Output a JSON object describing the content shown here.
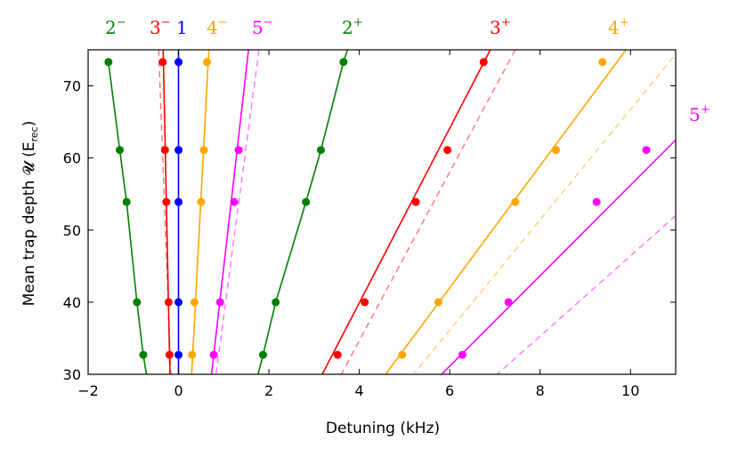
{
  "chart_data": {
    "type": "scatter",
    "title": "",
    "xlabel": "Detuning (kHz)",
    "ylabel": "Mean trap depth 𝓤 (E",
    "ylabel_sub": "rec",
    "ylabel_end": ")",
    "xlim": [
      -2,
      11
    ],
    "ylim": [
      30,
      75
    ],
    "xticks": [
      -2,
      0,
      2,
      4,
      6,
      8,
      10
    ],
    "yticks": [
      30,
      40,
      50,
      60,
      70
    ],
    "grid": false,
    "series": [
      {
        "name": "2⁻",
        "label": "2",
        "sup": "−",
        "color": "#008000",
        "points": [
          [
            -1.55,
            73.3
          ],
          [
            -1.3,
            61.1
          ],
          [
            -1.15,
            53.9
          ],
          [
            -0.92,
            40.0
          ],
          [
            -0.78,
            32.7
          ]
        ],
        "solid": [
          [
            -1.55,
            73.3
          ],
          [
            -1.3,
            61.1
          ],
          [
            -1.15,
            53.9
          ],
          [
            -0.92,
            40.0
          ],
          [
            -0.78,
            32.7
          ],
          [
            -0.71,
            30.0
          ]
        ],
        "dashed": null
      },
      {
        "name": "3⁻",
        "label": "3",
        "sup": "−",
        "color": "#ff0000",
        "points": [
          [
            -0.35,
            73.3
          ],
          [
            -0.3,
            61.1
          ],
          [
            -0.27,
            53.9
          ],
          [
            -0.22,
            40.0
          ],
          [
            -0.2,
            32.7
          ]
        ],
        "solid": [
          [
            -0.34,
            75.0
          ],
          [
            -0.19,
            30.0
          ]
        ],
        "dashed": [
          [
            -0.44,
            75.0
          ],
          [
            -0.17,
            30.0
          ]
        ]
      },
      {
        "name": "1",
        "label": "1",
        "sup": "",
        "color": "#0000ff",
        "points": [
          [
            0.0,
            73.3
          ],
          [
            0.0,
            61.1
          ],
          [
            0.0,
            53.9
          ],
          [
            0.0,
            40.0
          ],
          [
            0.0,
            32.7
          ]
        ],
        "solid": [
          [
            0.0,
            75.0
          ],
          [
            0.0,
            30.0
          ]
        ],
        "dashed": null
      },
      {
        "name": "4⁻",
        "label": "4",
        "sup": "−",
        "color": "#ffa500",
        "points": [
          [
            0.63,
            73.3
          ],
          [
            0.56,
            61.1
          ],
          [
            0.5,
            53.9
          ],
          [
            0.35,
            40.0
          ],
          [
            0.3,
            32.7
          ]
        ],
        "solid": [
          [
            0.67,
            75.0
          ],
          [
            0.29,
            30.0
          ]
        ],
        "dashed": null
      },
      {
        "name": "5⁻",
        "label": "5",
        "sup": "−",
        "color": "#ff00ff",
        "points": [
          [
            1.33,
            61.1
          ],
          [
            1.23,
            53.9
          ],
          [
            0.92,
            40.0
          ],
          [
            0.78,
            32.7
          ]
        ],
        "solid": [
          [
            1.55,
            75.0
          ],
          [
            0.73,
            30.0
          ]
        ],
        "dashed": [
          [
            1.78,
            75.0
          ],
          [
            0.83,
            30.0
          ]
        ]
      },
      {
        "name": "2⁺",
        "label": "2",
        "sup": "+",
        "color": "#008000",
        "points": [
          [
            3.65,
            73.3
          ],
          [
            3.15,
            61.1
          ],
          [
            2.82,
            53.9
          ],
          [
            2.15,
            40.0
          ],
          [
            1.87,
            32.7
          ]
        ],
        "solid": [
          [
            3.74,
            75.0
          ],
          [
            3.65,
            73.3
          ],
          [
            3.15,
            61.1
          ],
          [
            2.82,
            53.9
          ],
          [
            2.15,
            40.0
          ],
          [
            1.87,
            32.7
          ],
          [
            1.76,
            30.0
          ]
        ],
        "dashed": null
      },
      {
        "name": "3⁺",
        "label": "3",
        "sup": "+",
        "color": "#ff0000",
        "points": [
          [
            6.75,
            73.3
          ],
          [
            5.95,
            61.1
          ],
          [
            5.25,
            53.9
          ],
          [
            4.12,
            40.0
          ],
          [
            3.52,
            32.7
          ]
        ],
        "solid": [
          [
            6.9,
            75.0
          ],
          [
            3.18,
            30.0
          ]
        ],
        "dashed": [
          [
            7.45,
            75.0
          ],
          [
            3.6,
            30.0
          ]
        ]
      },
      {
        "name": "4⁺",
        "label": "4",
        "sup": "+",
        "color": "#ffa500",
        "points": [
          [
            9.38,
            73.3
          ],
          [
            8.35,
            61.1
          ],
          [
            7.45,
            53.9
          ],
          [
            5.75,
            40.0
          ],
          [
            4.95,
            32.7
          ]
        ],
        "solid": [
          [
            9.9,
            75.0
          ],
          [
            4.58,
            30.0
          ]
        ],
        "dashed": [
          [
            10.95,
            74.0
          ],
          [
            5.2,
            30.0
          ]
        ]
      },
      {
        "name": "5⁺",
        "label": "5",
        "sup": "+",
        "color": "#ff00ff",
        "points": [
          [
            10.35,
            61.1
          ],
          [
            9.25,
            53.9
          ],
          [
            7.3,
            40.0
          ],
          [
            6.28,
            32.7
          ]
        ],
        "solid": [
          [
            11.0,
            62.5
          ],
          [
            5.82,
            30.0
          ]
        ],
        "dashed": [
          [
            11.0,
            52.0
          ],
          [
            7.05,
            30.0
          ]
        ]
      }
    ]
  }
}
